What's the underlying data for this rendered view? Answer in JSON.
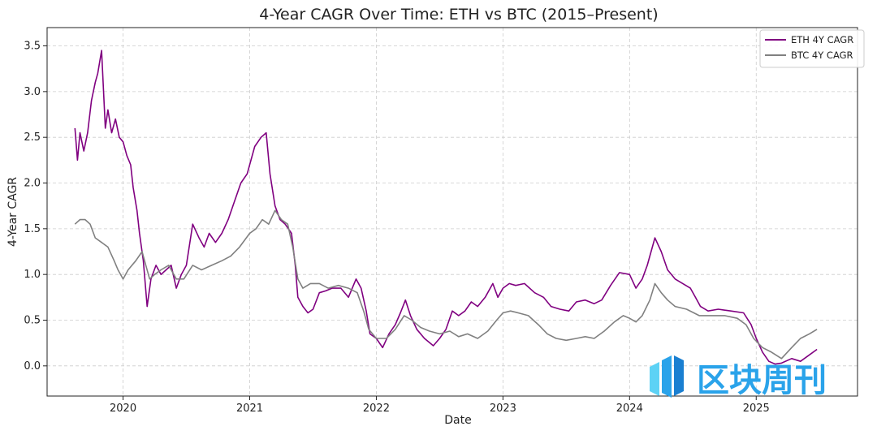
{
  "chart_data": {
    "type": "line",
    "title": "4-Year CAGR Over Time: ETH vs BTC (2015–Present)",
    "xlabel": "Date",
    "ylabel": "4-Year CAGR",
    "xlim": [
      2019.4,
      2025.8
    ],
    "ylim": [
      -0.33,
      3.7
    ],
    "x_ticks": [
      2020,
      2021,
      2022,
      2023,
      2024,
      2025
    ],
    "x_tick_labels": [
      "2020",
      "2021",
      "2022",
      "2023",
      "2024",
      "2025"
    ],
    "y_ticks": [
      0.0,
      0.5,
      1.0,
      1.5,
      2.0,
      2.5,
      3.0,
      3.5
    ],
    "y_tick_labels": [
      "0.0",
      "0.5",
      "1.0",
      "1.5",
      "2.0",
      "2.5",
      "3.0",
      "3.5"
    ],
    "grid": true,
    "legend_position": "top-right",
    "series": [
      {
        "name": "ETH 4Y CAGR",
        "color": "#800080",
        "points": [
          [
            2019.62,
            2.6
          ],
          [
            2019.64,
            2.25
          ],
          [
            2019.66,
            2.55
          ],
          [
            2019.69,
            2.35
          ],
          [
            2019.72,
            2.55
          ],
          [
            2019.75,
            2.9
          ],
          [
            2019.78,
            3.1
          ],
          [
            2019.8,
            3.2
          ],
          [
            2019.83,
            3.45
          ],
          [
            2019.86,
            2.6
          ],
          [
            2019.88,
            2.8
          ],
          [
            2019.91,
            2.55
          ],
          [
            2019.94,
            2.7
          ],
          [
            2019.97,
            2.5
          ],
          [
            2020.0,
            2.45
          ],
          [
            2020.03,
            2.3
          ],
          [
            2020.06,
            2.2
          ],
          [
            2020.08,
            1.95
          ],
          [
            2020.11,
            1.7
          ],
          [
            2020.13,
            1.45
          ],
          [
            2020.16,
            1.15
          ],
          [
            2020.19,
            0.65
          ],
          [
            2020.22,
            0.95
          ],
          [
            2020.26,
            1.1
          ],
          [
            2020.3,
            1.0
          ],
          [
            2020.34,
            1.05
          ],
          [
            2020.38,
            1.1
          ],
          [
            2020.42,
            0.85
          ],
          [
            2020.46,
            1.0
          ],
          [
            2020.5,
            1.1
          ],
          [
            2020.55,
            1.55
          ],
          [
            2020.6,
            1.4
          ],
          [
            2020.64,
            1.3
          ],
          [
            2020.68,
            1.45
          ],
          [
            2020.73,
            1.35
          ],
          [
            2020.78,
            1.45
          ],
          [
            2020.83,
            1.6
          ],
          [
            2020.88,
            1.8
          ],
          [
            2020.93,
            2.0
          ],
          [
            2020.98,
            2.1
          ],
          [
            2021.04,
            2.4
          ],
          [
            2021.09,
            2.5
          ],
          [
            2021.13,
            2.55
          ],
          [
            2021.16,
            2.1
          ],
          [
            2021.2,
            1.75
          ],
          [
            2021.24,
            1.6
          ],
          [
            2021.28,
            1.55
          ],
          [
            2021.33,
            1.45
          ],
          [
            2021.36,
            1.1
          ],
          [
            2021.38,
            0.75
          ],
          [
            2021.42,
            0.65
          ],
          [
            2021.46,
            0.58
          ],
          [
            2021.5,
            0.62
          ],
          [
            2021.55,
            0.8
          ],
          [
            2021.6,
            0.82
          ],
          [
            2021.65,
            0.85
          ],
          [
            2021.72,
            0.85
          ],
          [
            2021.78,
            0.75
          ],
          [
            2021.84,
            0.95
          ],
          [
            2021.88,
            0.85
          ],
          [
            2021.92,
            0.6
          ],
          [
            2021.95,
            0.35
          ],
          [
            2022.0,
            0.3
          ],
          [
            2022.05,
            0.2
          ],
          [
            2022.1,
            0.35
          ],
          [
            2022.15,
            0.45
          ],
          [
            2022.19,
            0.58
          ],
          [
            2022.23,
            0.72
          ],
          [
            2022.27,
            0.55
          ],
          [
            2022.32,
            0.4
          ],
          [
            2022.38,
            0.3
          ],
          [
            2022.45,
            0.22
          ],
          [
            2022.5,
            0.3
          ],
          [
            2022.55,
            0.4
          ],
          [
            2022.6,
            0.6
          ],
          [
            2022.65,
            0.55
          ],
          [
            2022.7,
            0.6
          ],
          [
            2022.75,
            0.7
          ],
          [
            2022.8,
            0.65
          ],
          [
            2022.86,
            0.75
          ],
          [
            2022.92,
            0.9
          ],
          [
            2022.96,
            0.75
          ],
          [
            2023.0,
            0.85
          ],
          [
            2023.05,
            0.9
          ],
          [
            2023.1,
            0.88
          ],
          [
            2023.17,
            0.9
          ],
          [
            2023.25,
            0.8
          ],
          [
            2023.32,
            0.75
          ],
          [
            2023.38,
            0.65
          ],
          [
            2023.45,
            0.62
          ],
          [
            2023.52,
            0.6
          ],
          [
            2023.58,
            0.7
          ],
          [
            2023.65,
            0.72
          ],
          [
            2023.72,
            0.68
          ],
          [
            2023.78,
            0.72
          ],
          [
            2023.85,
            0.88
          ],
          [
            2023.92,
            1.02
          ],
          [
            2024.0,
            1.0
          ],
          [
            2024.05,
            0.85
          ],
          [
            2024.1,
            0.95
          ],
          [
            2024.14,
            1.1
          ],
          [
            2024.2,
            1.4
          ],
          [
            2024.25,
            1.25
          ],
          [
            2024.3,
            1.05
          ],
          [
            2024.36,
            0.95
          ],
          [
            2024.42,
            0.9
          ],
          [
            2024.48,
            0.85
          ],
          [
            2024.52,
            0.75
          ],
          [
            2024.56,
            0.65
          ],
          [
            2024.62,
            0.6
          ],
          [
            2024.7,
            0.62
          ],
          [
            2024.8,
            0.6
          ],
          [
            2024.9,
            0.58
          ],
          [
            2024.96,
            0.45
          ],
          [
            2025.0,
            0.3
          ],
          [
            2025.05,
            0.15
          ],
          [
            2025.1,
            0.05
          ],
          [
            2025.15,
            0.02
          ],
          [
            2025.2,
            0.03
          ],
          [
            2025.28,
            0.08
          ],
          [
            2025.35,
            0.05
          ],
          [
            2025.42,
            0.12
          ],
          [
            2025.48,
            0.18
          ]
        ]
      },
      {
        "name": "BTC 4Y CAGR",
        "color": "#808080",
        "points": [
          [
            2019.62,
            1.55
          ],
          [
            2019.66,
            1.6
          ],
          [
            2019.7,
            1.6
          ],
          [
            2019.74,
            1.55
          ],
          [
            2019.78,
            1.4
          ],
          [
            2019.83,
            1.35
          ],
          [
            2019.88,
            1.3
          ],
          [
            2019.93,
            1.15
          ],
          [
            2019.96,
            1.05
          ],
          [
            2020.0,
            0.95
          ],
          [
            2020.04,
            1.05
          ],
          [
            2020.1,
            1.15
          ],
          [
            2020.15,
            1.25
          ],
          [
            2020.18,
            1.1
          ],
          [
            2020.21,
            0.95
          ],
          [
            2020.25,
            1.0
          ],
          [
            2020.3,
            1.05
          ],
          [
            2020.36,
            1.1
          ],
          [
            2020.42,
            0.95
          ],
          [
            2020.48,
            0.95
          ],
          [
            2020.55,
            1.1
          ],
          [
            2020.62,
            1.05
          ],
          [
            2020.7,
            1.1
          ],
          [
            2020.78,
            1.15
          ],
          [
            2020.85,
            1.2
          ],
          [
            2020.92,
            1.3
          ],
          [
            2021.0,
            1.45
          ],
          [
            2021.05,
            1.5
          ],
          [
            2021.1,
            1.6
          ],
          [
            2021.15,
            1.55
          ],
          [
            2021.2,
            1.7
          ],
          [
            2021.25,
            1.6
          ],
          [
            2021.3,
            1.55
          ],
          [
            2021.34,
            1.3
          ],
          [
            2021.38,
            0.95
          ],
          [
            2021.42,
            0.85
          ],
          [
            2021.48,
            0.9
          ],
          [
            2021.55,
            0.9
          ],
          [
            2021.62,
            0.85
          ],
          [
            2021.7,
            0.88
          ],
          [
            2021.78,
            0.85
          ],
          [
            2021.85,
            0.8
          ],
          [
            2021.9,
            0.6
          ],
          [
            2021.94,
            0.4
          ],
          [
            2022.0,
            0.3
          ],
          [
            2022.08,
            0.3
          ],
          [
            2022.15,
            0.4
          ],
          [
            2022.22,
            0.55
          ],
          [
            2022.28,
            0.5
          ],
          [
            2022.35,
            0.42
          ],
          [
            2022.42,
            0.38
          ],
          [
            2022.5,
            0.35
          ],
          [
            2022.58,
            0.38
          ],
          [
            2022.65,
            0.32
          ],
          [
            2022.72,
            0.35
          ],
          [
            2022.8,
            0.3
          ],
          [
            2022.88,
            0.38
          ],
          [
            2022.95,
            0.5
          ],
          [
            2023.0,
            0.58
          ],
          [
            2023.06,
            0.6
          ],
          [
            2023.12,
            0.58
          ],
          [
            2023.2,
            0.55
          ],
          [
            2023.28,
            0.45
          ],
          [
            2023.35,
            0.35
          ],
          [
            2023.42,
            0.3
          ],
          [
            2023.5,
            0.28
          ],
          [
            2023.58,
            0.3
          ],
          [
            2023.65,
            0.32
          ],
          [
            2023.72,
            0.3
          ],
          [
            2023.8,
            0.38
          ],
          [
            2023.88,
            0.48
          ],
          [
            2023.95,
            0.55
          ],
          [
            2024.0,
            0.52
          ],
          [
            2024.05,
            0.48
          ],
          [
            2024.1,
            0.55
          ],
          [
            2024.16,
            0.72
          ],
          [
            2024.2,
            0.9
          ],
          [
            2024.25,
            0.8
          ],
          [
            2024.3,
            0.72
          ],
          [
            2024.36,
            0.65
          ],
          [
            2024.45,
            0.62
          ],
          [
            2024.55,
            0.55
          ],
          [
            2024.65,
            0.55
          ],
          [
            2024.75,
            0.55
          ],
          [
            2024.85,
            0.52
          ],
          [
            2024.92,
            0.45
          ],
          [
            2024.98,
            0.3
          ],
          [
            2025.05,
            0.2
          ],
          [
            2025.12,
            0.15
          ],
          [
            2025.2,
            0.08
          ],
          [
            2025.28,
            0.2
          ],
          [
            2025.35,
            0.3
          ],
          [
            2025.42,
            0.35
          ],
          [
            2025.48,
            0.4
          ]
        ]
      }
    ]
  },
  "watermark": {
    "text": "区块周刊",
    "color": "#2aa3ea"
  }
}
